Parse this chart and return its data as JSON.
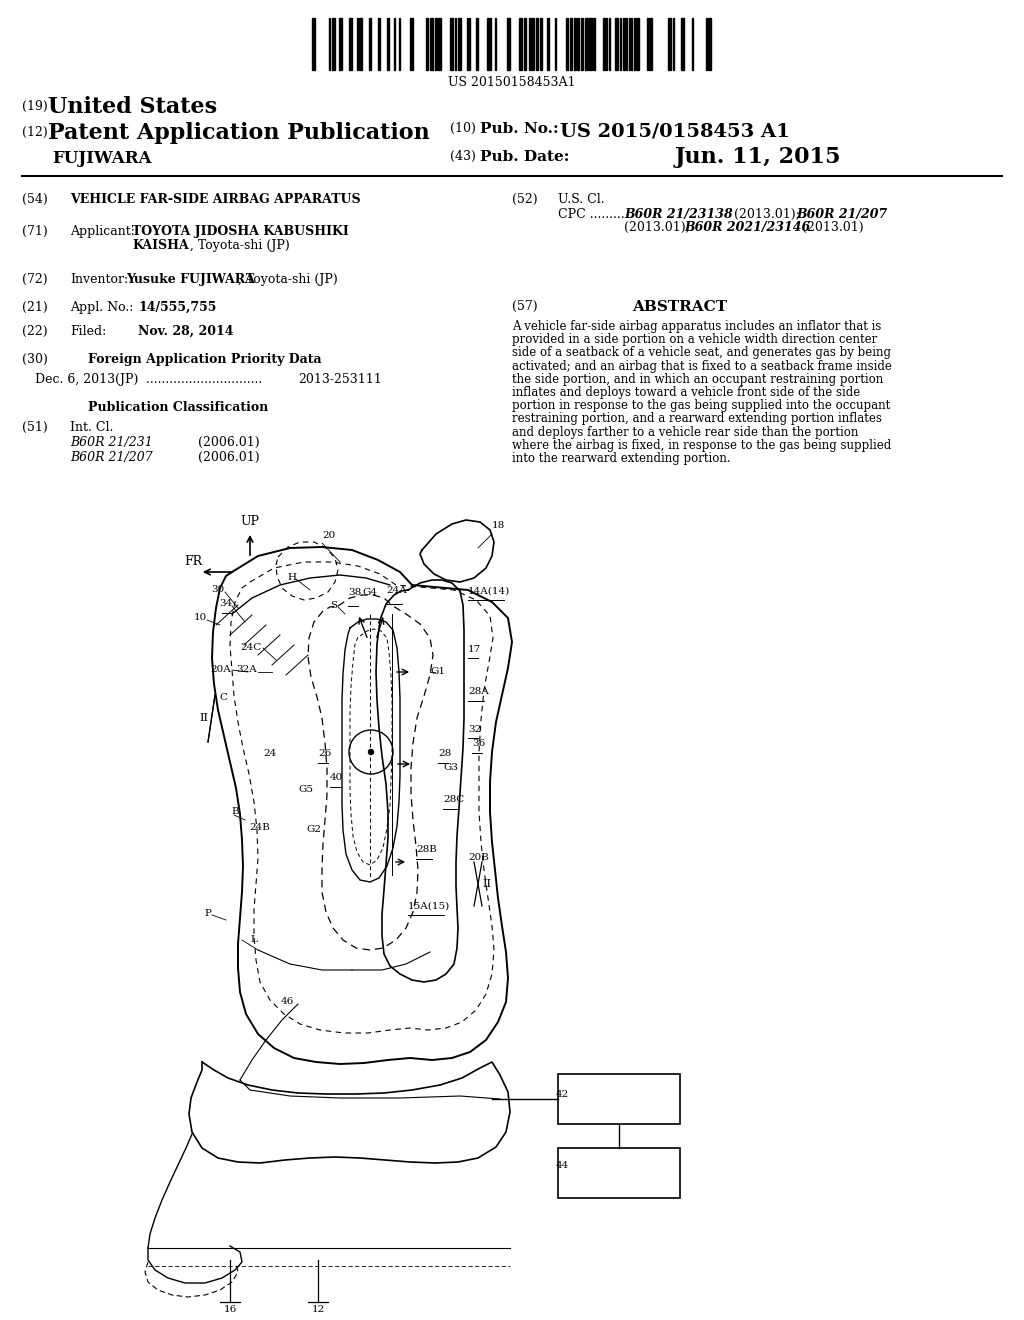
{
  "title": "VEHICLE FAR-SIDE AIRBAG APPARATUS",
  "pub_num": "US 2015/0158453 A1",
  "pub_date": "Jun. 11, 2015",
  "barcode_text": "US 20150158453A1",
  "bg_color": "#ffffff",
  "text_color": "#000000",
  "abstract_lines": [
    "A vehicle far-side airbag apparatus includes an inflator that is",
    "provided in a side portion on a vehicle width direction center",
    "side of a seatback of a vehicle seat, and generates gas by being",
    "activated; and an airbag that is fixed to a seatback frame inside",
    "the side portion, and in which an occupant restraining portion",
    "inflates and deploys toward a vehicle front side of the side",
    "portion in response to the gas being supplied into the occupant",
    "restraining portion, and a rearward extending portion inflates",
    "and deploys farther to a vehicle rear side than the portion",
    "where the airbag is fixed, in response to the gas being supplied",
    "into the rearward extending portion."
  ]
}
